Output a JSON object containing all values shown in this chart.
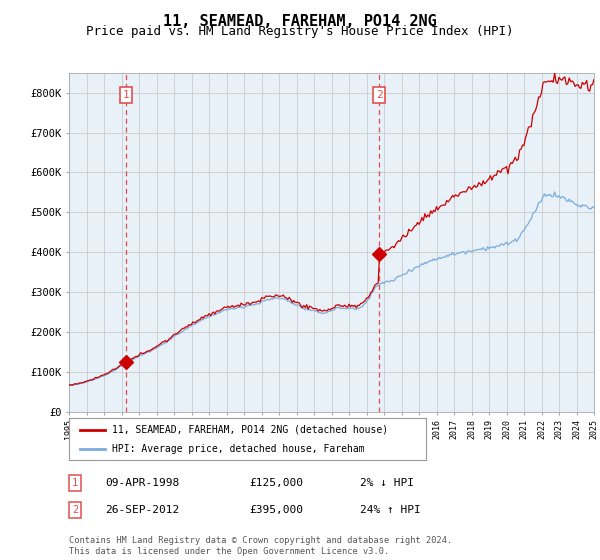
{
  "title": "11, SEAMEAD, FAREHAM, PO14 2NG",
  "subtitle": "Price paid vs. HM Land Registry's House Price Index (HPI)",
  "title_fontsize": 11,
  "subtitle_fontsize": 9,
  "ylim": [
    0,
    850000
  ],
  "yticks": [
    0,
    100000,
    200000,
    300000,
    400000,
    500000,
    600000,
    700000,
    800000
  ],
  "ytick_labels": [
    "£0",
    "£100K",
    "£200K",
    "£300K",
    "£400K",
    "£500K",
    "£600K",
    "£700K",
    "£800K"
  ],
  "hpi_color": "#7aaddb",
  "price_color": "#cc0000",
  "marker_color": "#cc0000",
  "vline_color": "#e05050",
  "grid_color": "#cccccc",
  "bg_color": "#ffffff",
  "chart_bg_color": "#e8f0f8",
  "purchase1_year": 1998.27,
  "purchase1_price": 125000,
  "purchase2_year": 2012.73,
  "purchase2_price": 395000,
  "legend_label1": "11, SEAMEAD, FAREHAM, PO14 2NG (detached house)",
  "legend_label2": "HPI: Average price, detached house, Fareham",
  "footer": "Contains HM Land Registry data © Crown copyright and database right 2024.\nThis data is licensed under the Open Government Licence v3.0.",
  "purchase1_date": "09-APR-1998",
  "purchase1_pct": "2% ↓ HPI",
  "purchase2_date": "26-SEP-2012",
  "purchase2_pct": "24% ↑ HPI"
}
